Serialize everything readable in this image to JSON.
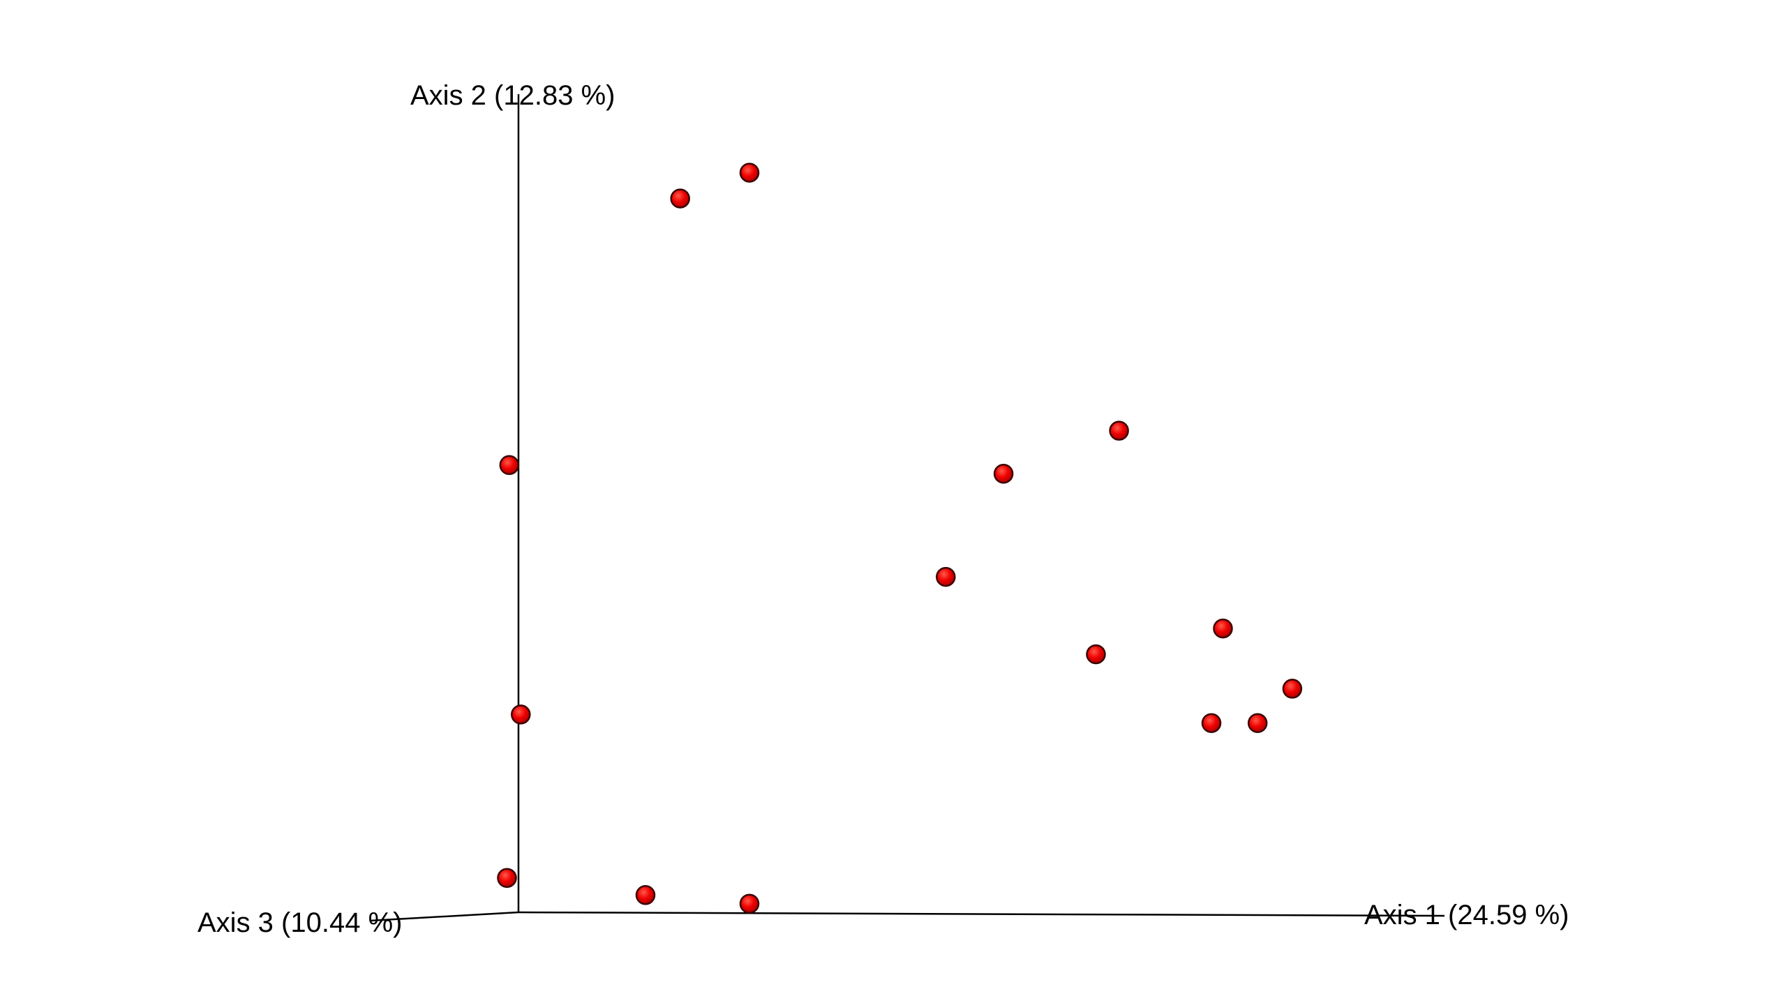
{
  "chart_data": {
    "type": "scatter",
    "projection": "3d",
    "axes": {
      "x": {
        "label": "Axis 1 (24.59 %)"
      },
      "y": {
        "label": "Axis 2 (12.83 %)"
      },
      "z": {
        "label": "Axis 3 (10.44 %)"
      }
    },
    "grid": false,
    "legend": "none",
    "point_color": "#ee0000",
    "point_edge_color": "#3a0000",
    "points": [
      {
        "x": 0.14,
        "y": 0.83
      },
      {
        "x": 0.2,
        "y": 0.86
      },
      {
        "x": -0.01,
        "y": 0.04
      },
      {
        "x": 0.002,
        "y": 0.23
      },
      {
        "x": -0.008,
        "y": 0.52
      },
      {
        "x": 0.11,
        "y": 0.02
      },
      {
        "x": 0.2,
        "y": 0.01
      },
      {
        "x": 0.37,
        "y": 0.39
      },
      {
        "x": 0.42,
        "y": 0.51
      },
      {
        "x": 0.52,
        "y": 0.56
      },
      {
        "x": 0.5,
        "y": 0.3
      },
      {
        "x": 0.61,
        "y": 0.33
      },
      {
        "x": 0.6,
        "y": 0.22
      },
      {
        "x": 0.64,
        "y": 0.22
      },
      {
        "x": 0.67,
        "y": 0.26
      }
    ]
  }
}
